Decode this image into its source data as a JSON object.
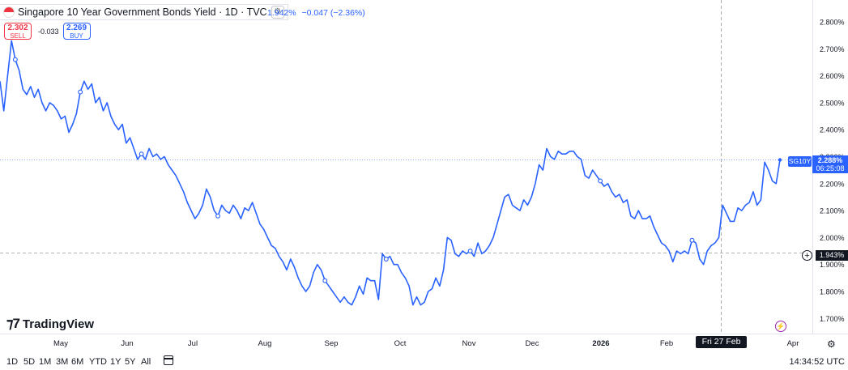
{
  "legend": {
    "title": "Singapore 10 Year Government Bonds Yield · 1D · TVC",
    "value": "1.942%",
    "change": "−0.047 (−2.36%)"
  },
  "trade": {
    "sell_price": "2.302",
    "sell_label": "SELL",
    "spread": "-0.033",
    "buy_price": "2.269",
    "buy_label": "BUY"
  },
  "logo": {
    "mark": "⁊7",
    "text": "TradingView"
  },
  "timeframes": [
    "1D",
    "5D",
    "1M",
    "3M",
    "6M",
    "YTD",
    "1Y",
    "5Y",
    "All"
  ],
  "clock": "14:34:52 UTC",
  "crosshair": {
    "date_label": "Fri 27 Feb '26",
    "price_label": "1.943%"
  },
  "last_price": {
    "symbol": "SG10Y",
    "value": "2.288%",
    "countdown": "06:25:08"
  },
  "colors": {
    "line": "#2962ff",
    "grid": "#f0f3fa",
    "text": "#131722",
    "sell": "#f23645"
  },
  "icons": [
    "flag-singapore-icon",
    "settings-icon",
    "calendar-icon",
    "plus-icon",
    "gear-icon",
    "lightning-icon"
  ],
  "chart_data": {
    "type": "line",
    "ylim": [
      1.7,
      2.85
    ],
    "yticks": [
      1.7,
      1.8,
      1.9,
      2.0,
      2.1,
      2.2,
      2.3,
      2.4,
      2.5,
      2.6,
      2.7,
      2.8
    ],
    "ytick_labels": [
      "1.700%",
      "1.800%",
      "1.900%",
      "2.000%",
      "2.100%",
      "2.200%",
      "2.300%",
      "2.400%",
      "2.500%",
      "2.600%",
      "2.700%",
      "2.800%"
    ],
    "xtick_labels": [
      "May",
      "Jun",
      "Jul",
      "Aug",
      "Sep",
      "Oct",
      "Nov",
      "Dec",
      "2026",
      "Feb",
      "Apr"
    ],
    "series": [
      {
        "values": [
          2.58,
          2.47,
          2.6,
          2.73,
          2.66,
          2.62,
          2.55,
          2.53,
          2.56,
          2.52,
          2.55,
          2.5,
          2.47,
          2.5,
          2.49,
          2.47,
          2.44,
          2.45,
          2.39,
          2.42,
          2.46,
          2.54,
          2.58,
          2.55,
          2.57,
          2.5,
          2.52,
          2.47,
          2.5,
          2.45,
          2.42,
          2.4,
          2.42,
          2.35,
          2.37,
          2.33,
          2.29,
          2.31,
          2.29,
          2.33,
          2.3,
          2.31,
          2.29,
          2.3,
          2.27,
          2.25,
          2.23,
          2.2,
          2.17,
          2.13,
          2.1,
          2.07,
          2.09,
          2.12,
          2.18,
          2.15,
          2.1,
          2.08,
          2.12,
          2.1,
          2.09,
          2.12,
          2.1,
          2.07,
          2.11,
          2.1,
          2.13,
          2.09,
          2.05,
          2.03,
          2.0,
          1.97,
          1.96,
          1.93,
          1.91,
          1.88,
          1.92,
          1.89,
          1.85,
          1.82,
          1.8,
          1.82,
          1.87,
          1.9,
          1.88,
          1.84,
          1.82,
          1.8,
          1.78,
          1.76,
          1.78,
          1.76,
          1.75,
          1.78,
          1.82,
          1.79,
          1.85,
          1.84,
          1.84,
          1.77,
          1.94,
          1.92,
          1.93,
          1.9,
          1.9,
          1.87,
          1.85,
          1.82,
          1.75,
          1.78,
          1.75,
          1.76,
          1.8,
          1.81,
          1.85,
          1.82,
          1.88,
          2.0,
          1.99,
          1.94,
          1.93,
          1.95,
          1.94,
          1.95,
          1.93,
          1.98,
          1.94,
          1.95,
          1.97,
          2.0,
          2.05,
          2.1,
          2.15,
          2.16,
          2.12,
          2.11,
          2.1,
          2.14,
          2.12,
          2.15,
          2.2,
          2.27,
          2.25,
          2.33,
          2.3,
          2.29,
          2.32,
          2.31,
          2.31,
          2.32,
          2.32,
          2.3,
          2.29,
          2.23,
          2.22,
          2.25,
          2.23,
          2.21,
          2.19,
          2.2,
          2.17,
          2.15,
          2.16,
          2.13,
          2.14,
          2.08,
          2.07,
          2.1,
          2.07,
          2.07,
          2.08,
          2.04,
          2.01,
          1.98,
          1.97,
          1.95,
          1.91,
          1.95,
          1.94,
          1.95,
          1.94,
          1.99,
          1.98,
          1.92,
          1.9,
          1.95,
          1.97,
          1.98,
          2.0,
          2.12,
          2.09,
          2.06,
          2.06,
          2.11,
          2.1,
          2.12,
          2.13,
          2.17,
          2.12,
          2.14,
          2.28,
          2.25,
          2.21,
          2.2,
          2.288
        ],
        "markers": [
          4,
          21,
          37,
          57,
          85,
          101,
          123,
          157,
          181
        ]
      }
    ]
  }
}
